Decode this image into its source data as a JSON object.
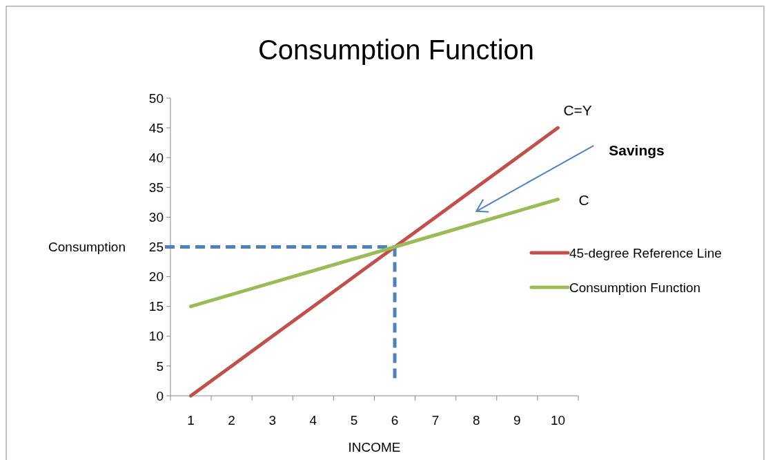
{
  "chart_data": {
    "type": "line",
    "title": "Consumption Function",
    "xlabel": "INCOME",
    "ylabel": "Consumption",
    "categories": [
      "1",
      "2",
      "3",
      "4",
      "5",
      "6",
      "7",
      "8",
      "9",
      "10"
    ],
    "series": [
      {
        "name": "45-degree Reference Line",
        "color": "#c0504d",
        "values": [
          0,
          5,
          10,
          15,
          20,
          25,
          30,
          35,
          40,
          45
        ]
      },
      {
        "name": "Consumption Function",
        "color": "#9bbb59",
        "values": [
          15,
          17,
          19,
          21,
          23,
          25,
          27,
          29,
          31,
          33
        ]
      }
    ],
    "ylim": [
      0,
      50
    ],
    "yticks": [
      0,
      5,
      10,
      15,
      20,
      25,
      30,
      35,
      40,
      45,
      50
    ],
    "legend": "right",
    "marker": "none",
    "line_style": "solid",
    "ref_lines": [
      {
        "axis": "y",
        "value": 25,
        "color": "#4f81bd",
        "line_style": "dashed"
      },
      {
        "axis": "x",
        "value": "6",
        "color": "#4f81bd",
        "line_style": "dashed"
      }
    ],
    "annotations": [
      {
        "text": "C=Y",
        "x": "10",
        "y": 45
      },
      {
        "text": "C",
        "x": "10",
        "y": 33
      },
      "Savings"
    ]
  }
}
